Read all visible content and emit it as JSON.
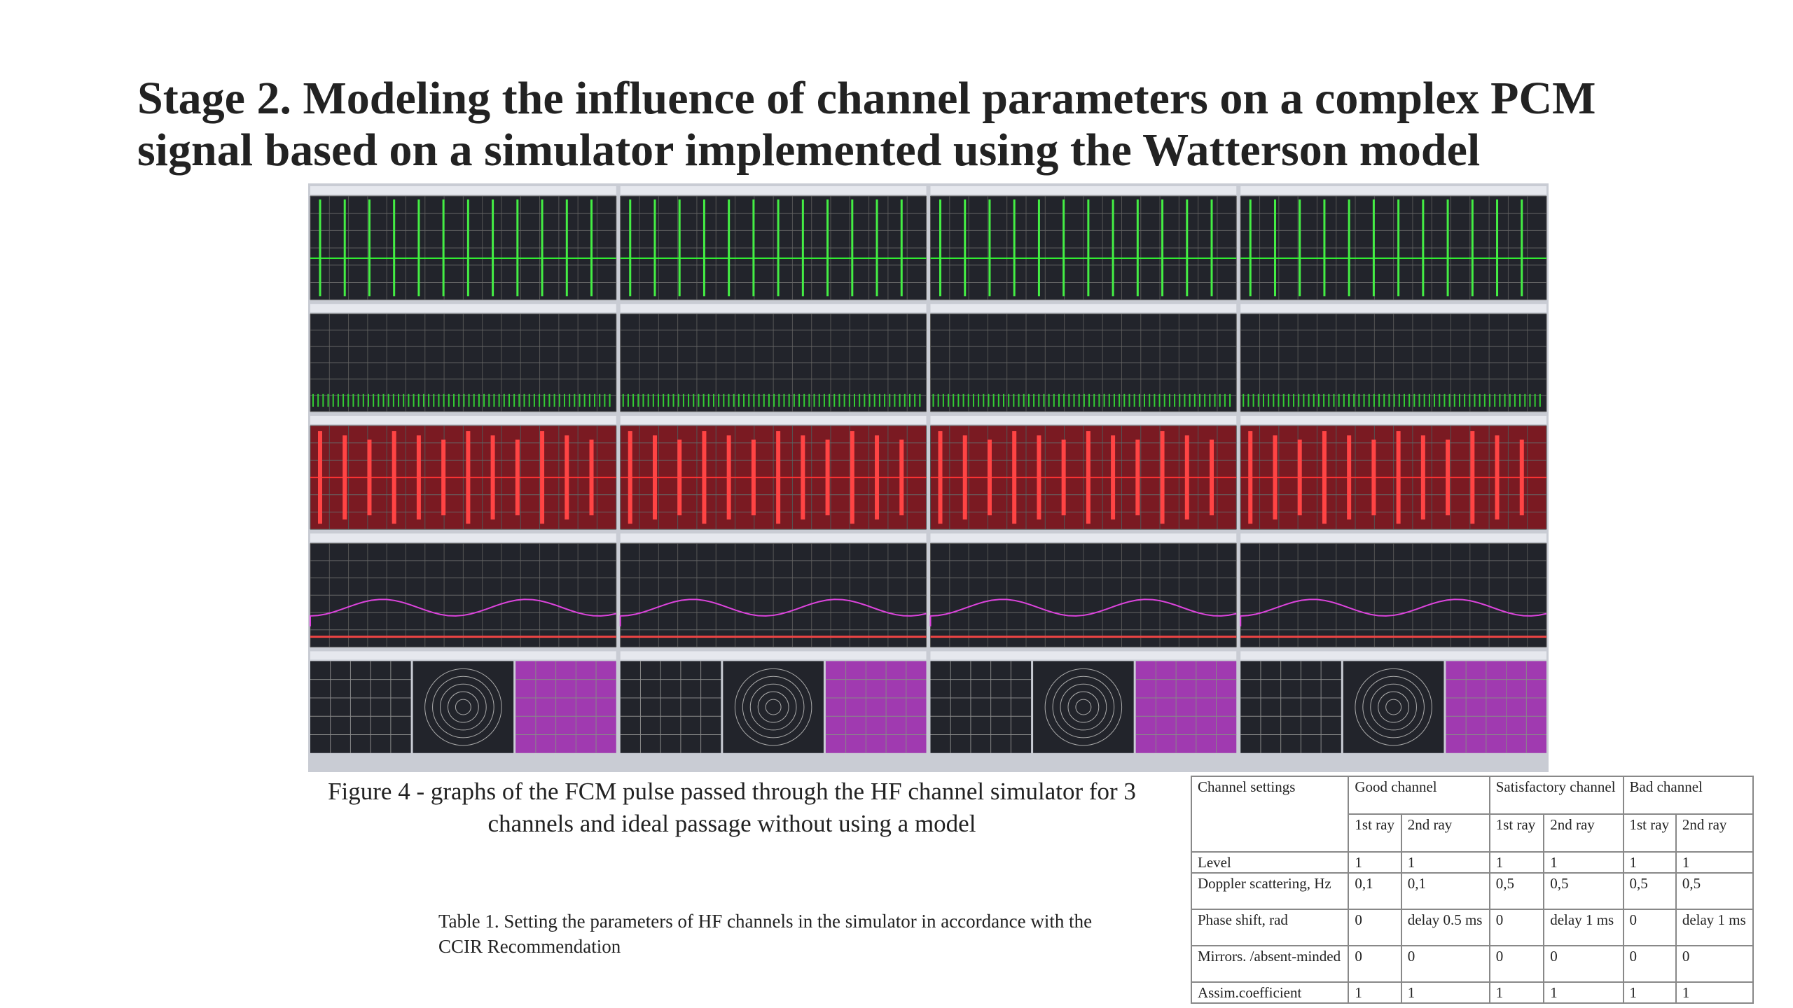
{
  "title": "Stage 2. Modeling the influence of channel parameters on a complex PCM signal based on a simulator implemented using the Watterson model",
  "figure_caption": "Figure 4 - graphs of the FCM pulse passed through the HF channel simulator for 3 channels and ideal passage without using a model",
  "table_caption": "Table 1. Setting the parameters of HF channels in the simulator in accordance with the CCIR Recommendation",
  "table": {
    "header_top": [
      "Channel settings",
      "Good channel",
      "Satisfactory channel",
      "Bad channel"
    ],
    "header_sub": [
      "1st ray",
      "2nd ray",
      "1st ray",
      "2nd ray",
      "1st ray",
      "2nd ray"
    ],
    "rows": [
      [
        "Level",
        "1",
        "1",
        "1",
        "1",
        "1",
        "1"
      ],
      [
        "Doppler scattering, Hz",
        "0,1",
        "0,1",
        "0,5",
        "0,5",
        "0,5",
        "0,5"
      ],
      [
        "Phase shift, rad",
        "0",
        "delay 0.5 ms",
        "0",
        "delay 1 ms",
        "0",
        "delay 1 ms"
      ],
      [
        "Mirrors. /absent-minded",
        "0",
        "0",
        "0",
        "0",
        "0",
        "0"
      ],
      [
        "Assim.coefficient",
        "1",
        "1",
        "1",
        "1",
        "1",
        "1"
      ]
    ]
  }
}
